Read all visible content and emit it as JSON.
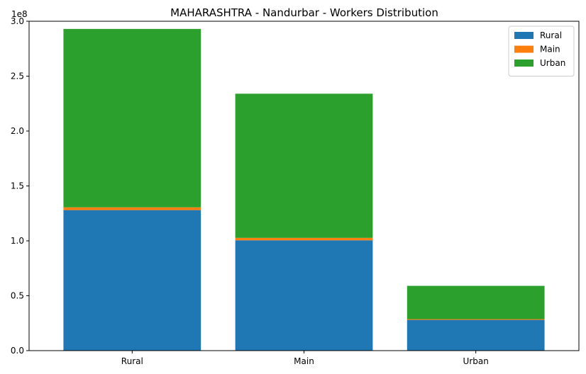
{
  "chart_data": {
    "type": "bar",
    "stacked": true,
    "title": "MAHARASHTRA - Nandurbar - Workers Distribution",
    "xlabel": "",
    "ylabel": "",
    "categories": [
      "Rural",
      "Main",
      "Urban"
    ],
    "series": [
      {
        "name": "Rural",
        "color": "#1f77b4",
        "values": [
          128000000,
          100500000,
          28000000
        ]
      },
      {
        "name": "Main",
        "color": "#ff7f0e",
        "values": [
          2500000,
          2200000,
          700000
        ]
      },
      {
        "name": "Urban",
        "color": "#2ca02c",
        "values": [
          162500000,
          131300000,
          30300000
        ]
      }
    ],
    "ylim": [
      0,
      300000000
    ],
    "yticks": [
      0,
      50000000,
      100000000,
      150000000,
      200000000,
      250000000,
      300000000
    ],
    "ytick_labels": [
      "0.0",
      "0.5",
      "1.0",
      "1.5",
      "2.0",
      "2.5",
      "3.0"
    ],
    "y_offset_label": "1e8",
    "legend_position": "top-right",
    "grid": false
  }
}
